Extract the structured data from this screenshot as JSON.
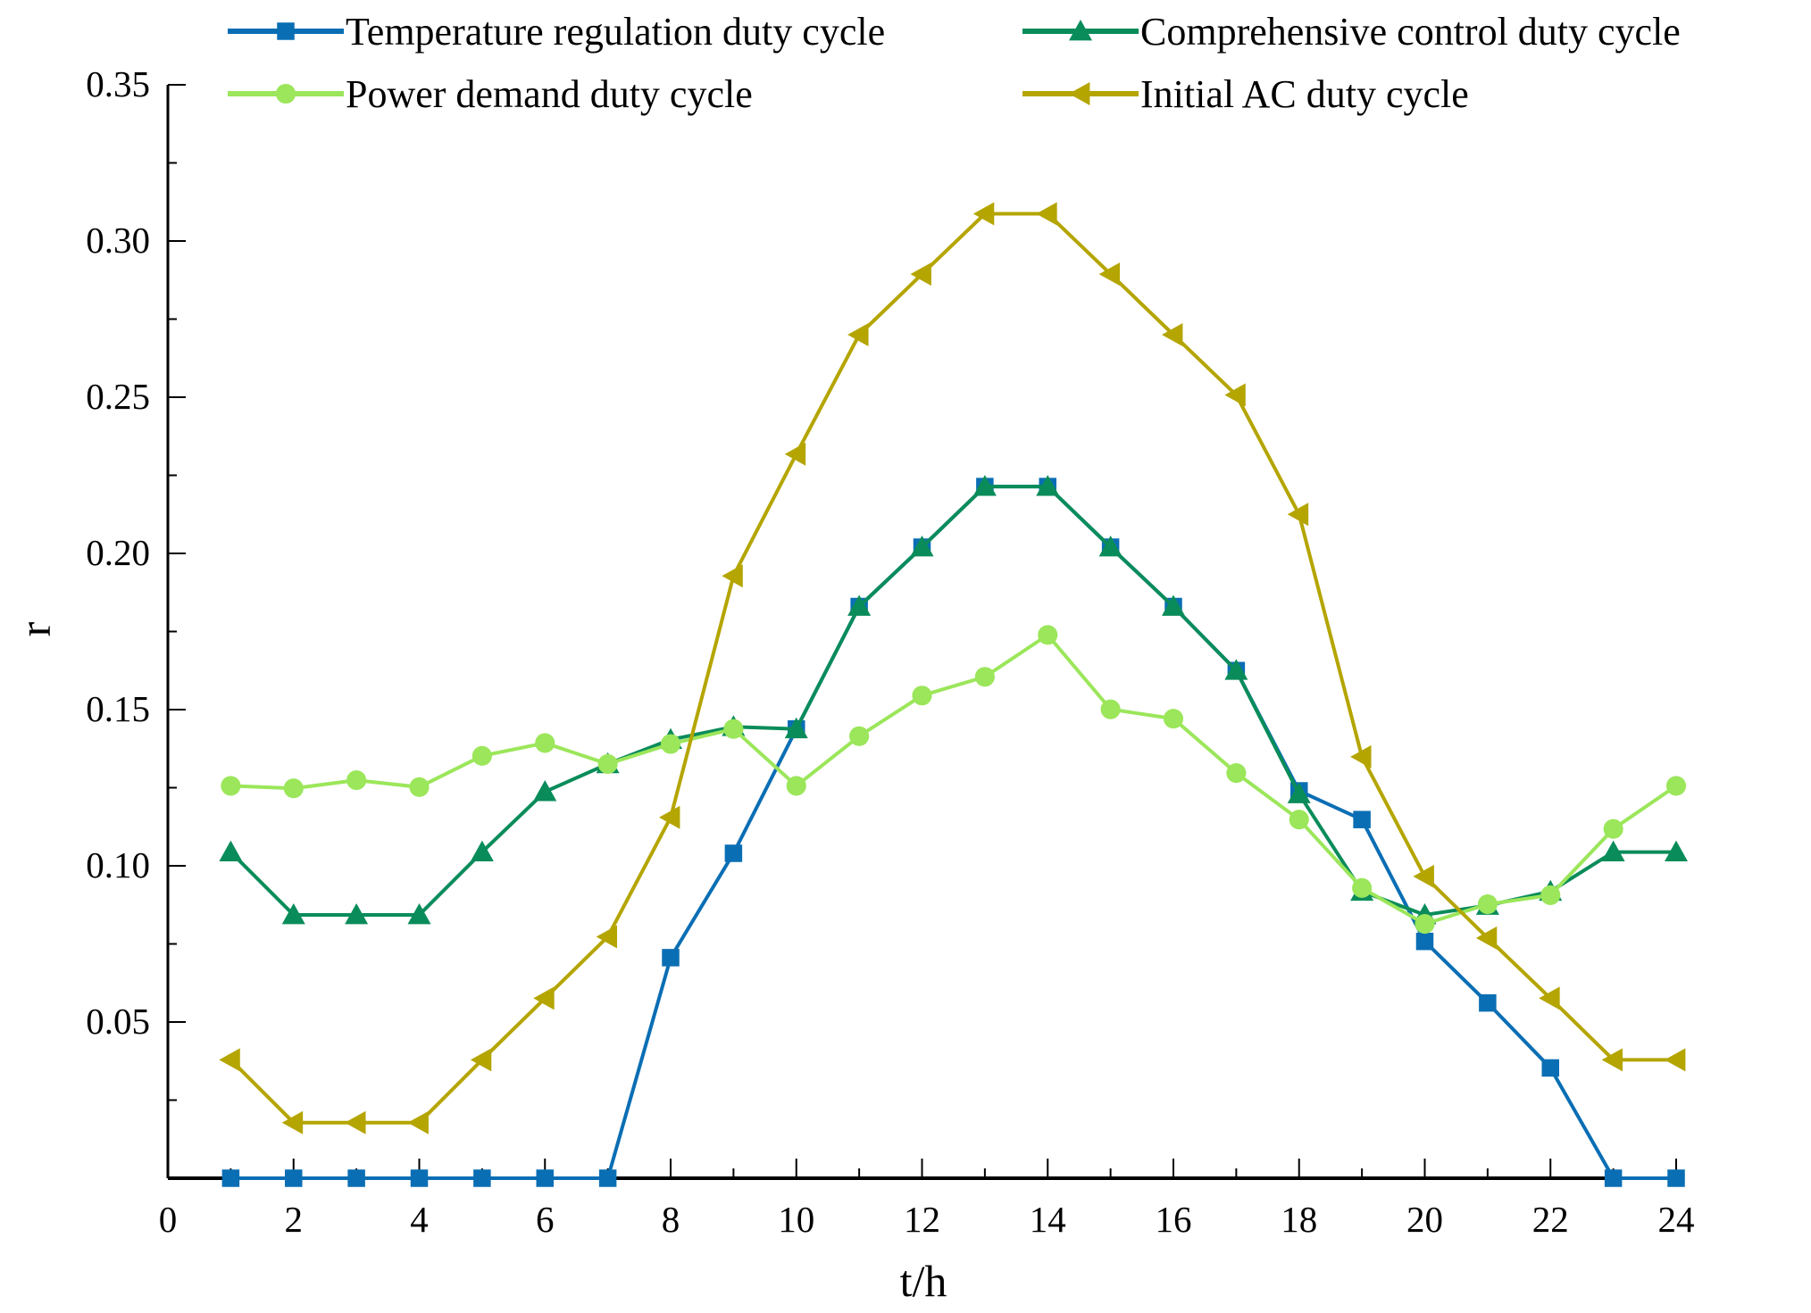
{
  "chart_data": {
    "type": "line",
    "title": "",
    "xlabel": "t/h",
    "ylabel": "r",
    "xlim": [
      0,
      24
    ],
    "ylim": [
      0,
      0.35
    ],
    "xticks": [
      "0",
      "2",
      "4",
      "6",
      "8",
      "10",
      "12",
      "14",
      "16",
      "18",
      "20",
      "22",
      "24"
    ],
    "yticks": [
      "0.05",
      "0.10",
      "0.15",
      "0.20",
      "0.25",
      "0.30",
      "0.35"
    ],
    "grid": false,
    "legend_position": "top",
    "x": [
      1,
      2,
      3,
      4,
      5,
      6,
      7,
      8,
      9,
      10,
      11,
      12,
      13,
      14,
      15,
      16,
      17,
      18,
      19,
      20,
      21,
      22,
      23,
      24
    ],
    "series": [
      {
        "name": "Temperature regulation duty cycle",
        "color": "#0a6eb4",
        "marker": "square",
        "values": [
          0,
          0,
          0,
          0,
          0,
          0,
          0,
          0.0706,
          0.104,
          0.1438,
          0.183,
          0.202,
          0.2214,
          0.2214,
          0.202,
          0.183,
          0.1625,
          0.124,
          0.1148,
          0.0758,
          0.0561,
          0.0353,
          0,
          0
        ]
      },
      {
        "name": "Comprehensive control duty cycle",
        "color": "#0a8c5a",
        "marker": "triangle-up",
        "values": [
          0.1044,
          0.0843,
          0.0843,
          0.0843,
          0.1044,
          0.1237,
          0.1326,
          0.1404,
          0.1445,
          0.1438,
          0.183,
          0.202,
          0.2214,
          0.2214,
          0.202,
          0.183,
          0.1625,
          0.123,
          0.0918,
          0.0843,
          0.0873,
          0.0918,
          0.1044,
          0.1044
        ]
      },
      {
        "name": "Power demand duty cycle",
        "color": "#9be65a",
        "marker": "circle",
        "values": [
          0.1256,
          0.1248,
          0.1274,
          0.1252,
          0.1352,
          0.1393,
          0.1326,
          0.139,
          0.1438,
          0.1256,
          0.1415,
          0.1545,
          0.1605,
          0.1739,
          0.1501,
          0.1471,
          0.1297,
          0.1148,
          0.0929,
          0.0814,
          0.0877,
          0.0906,
          0.1118,
          0.1256
        ]
      },
      {
        "name": "Initial AC duty cycle",
        "color": "#b4a500",
        "marker": "triangle-left",
        "values": [
          0.0379,
          0.0178,
          0.0178,
          0.0178,
          0.0379,
          0.0576,
          0.0773,
          0.1155,
          0.1928,
          0.2318,
          0.27,
          0.2894,
          0.3087,
          0.3087,
          0.2894,
          0.27,
          0.2507,
          0.2125,
          0.1349,
          0.0966,
          0.0769,
          0.0576,
          0.0379,
          0.0379
        ]
      }
    ]
  }
}
